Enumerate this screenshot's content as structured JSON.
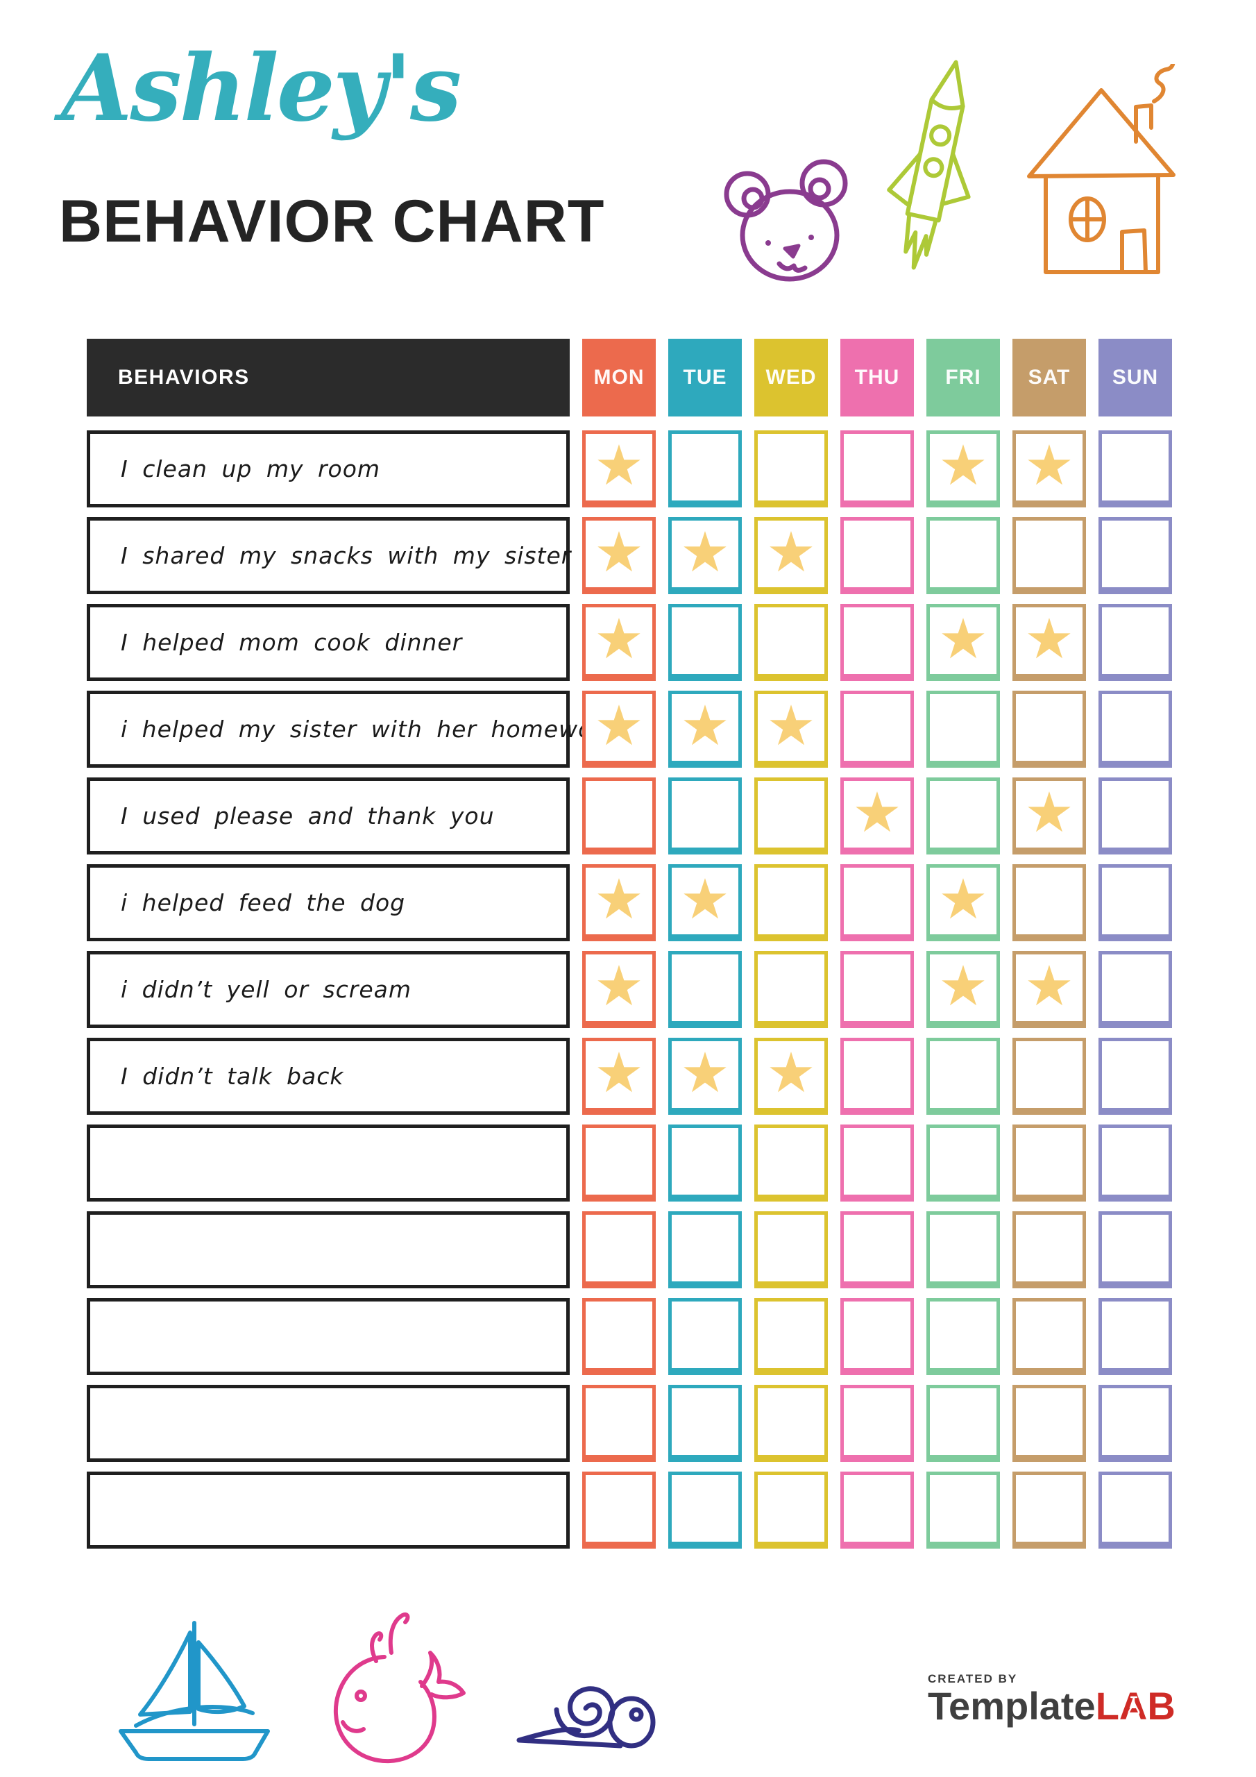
{
  "header": {
    "name_script": "Ashley's",
    "title": "BEHAVIOR CHART"
  },
  "theme": {
    "name_color": "#35aebc",
    "title_color": "#242424",
    "behaviors_header_bg": "#2b2b2b",
    "star_color": "#f8d078",
    "star_glyph": "★"
  },
  "decorations": {
    "top_icons": [
      {
        "icon": "bear-icon",
        "color": "#8a3b8f"
      },
      {
        "icon": "rocket-icon",
        "color": "#adc937"
      },
      {
        "icon": "house-icon",
        "color": "#e08632"
      }
    ],
    "bottom_icons": [
      {
        "icon": "sailboat-icon",
        "color": "#2196c9"
      },
      {
        "icon": "whale-icon",
        "color": "#df3a8c"
      },
      {
        "icon": "snail-icon",
        "color": "#312f82"
      }
    ]
  },
  "table": {
    "behaviors_header": "BEHAVIORS",
    "days": [
      {
        "label": "MON",
        "color": "#ec6a4d"
      },
      {
        "label": "TUE",
        "color": "#2ea9bd"
      },
      {
        "label": "WED",
        "color": "#dcc32f"
      },
      {
        "label": "THU",
        "color": "#ee70ae"
      },
      {
        "label": "FRI",
        "color": "#7ecb9c"
      },
      {
        "label": "SAT",
        "color": "#c59d6a"
      },
      {
        "label": "SUN",
        "color": "#8b8cc6"
      }
    ],
    "rows": [
      {
        "behavior": "I clean up my room",
        "stars": [
          "MON",
          "FRI",
          "SAT"
        ]
      },
      {
        "behavior": "I shared my snacks with my sister",
        "stars": [
          "MON",
          "TUE",
          "WED"
        ]
      },
      {
        "behavior": "I helped mom cook dinner",
        "stars": [
          "MON",
          "FRI",
          "SAT"
        ]
      },
      {
        "behavior": "i helped my sister with her homework",
        "stars": [
          "MON",
          "TUE",
          "WED"
        ]
      },
      {
        "behavior": "I used please and thank you",
        "stars": [
          "THU",
          "SAT"
        ]
      },
      {
        "behavior": "i helped feed the dog",
        "stars": [
          "MON",
          "TUE",
          "FRI"
        ]
      },
      {
        "behavior": "i didn’t yell or scream",
        "stars": [
          "MON",
          "FRI",
          "SAT"
        ]
      },
      {
        "behavior": "I didn’t talk back",
        "stars": [
          "MON",
          "TUE",
          "WED"
        ]
      },
      {
        "behavior": "",
        "stars": []
      },
      {
        "behavior": "",
        "stars": []
      },
      {
        "behavior": "",
        "stars": []
      },
      {
        "behavior": "",
        "stars": []
      },
      {
        "behavior": "",
        "stars": []
      }
    ]
  },
  "footer": {
    "created_by": "CREATED BY",
    "brand_primary": "Template",
    "brand_accent": "LAB"
  }
}
